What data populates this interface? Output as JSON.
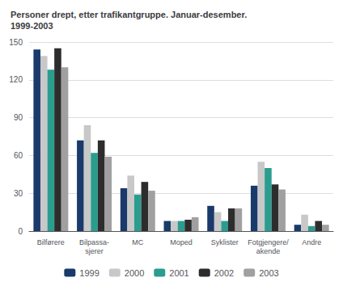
{
  "chart_data": {
    "type": "bar",
    "title": "Personer drept, etter trafikantgruppe. Januar-desember.\n1999-2003",
    "categories": [
      "Bilførere",
      "Bilpassa-\nsjerer",
      "MC",
      "Moped",
      "Syklister",
      "Fotgjengere/\nakende",
      "Andre"
    ],
    "series": [
      {
        "name": "1999",
        "color": "#1a3a6b",
        "values": [
          144,
          72,
          34,
          8,
          20,
          36,
          5
        ]
      },
      {
        "name": "2000",
        "color": "#c8c8c8",
        "values": [
          139,
          84,
          44,
          8,
          15,
          55,
          13
        ]
      },
      {
        "name": "2001",
        "color": "#2a9d8f",
        "values": [
          128,
          62,
          29,
          8,
          8,
          50,
          4
        ]
      },
      {
        "name": "2002",
        "color": "#2d2d2d",
        "values": [
          145,
          72,
          39,
          9,
          18,
          37,
          8
        ]
      },
      {
        "name": "2003",
        "color": "#a0a0a0",
        "values": [
          130,
          59,
          32,
          11,
          18,
          33,
          5
        ]
      }
    ],
    "ylim": [
      0,
      150
    ],
    "yticks": [
      0,
      30,
      60,
      90,
      120,
      150
    ],
    "grid": true,
    "legend": "bottom"
  }
}
